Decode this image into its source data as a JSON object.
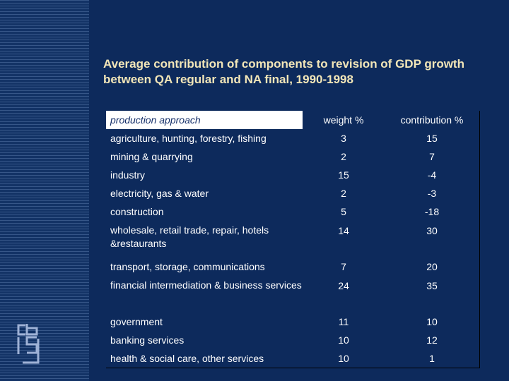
{
  "title": "Average contribution of components to revision of GDP growth between QA regular and NA final, 1990-1998",
  "table": {
    "header": {
      "label": "production approach",
      "weight": "weight %",
      "contribution": "contribution %"
    },
    "rows": [
      {
        "label": "agriculture, hunting, forestry, fishing",
        "weight": "3",
        "contribution": "15"
      },
      {
        "label": "mining & quarrying",
        "weight": "2",
        "contribution": "7"
      },
      {
        "label": "industry",
        "weight": "15",
        "contribution": "-4"
      },
      {
        "label": "electricity, gas & water",
        "weight": "2",
        "contribution": "-3"
      },
      {
        "label": "construction",
        "weight": "5",
        "contribution": "-18"
      },
      {
        "label": "wholesale, retail trade, repair, hotels &restaurants",
        "weight": "14",
        "contribution": "30"
      },
      {
        "label": "transport, storage, communications",
        "weight": "7",
        "contribution": "20"
      },
      {
        "label": "financial intermediation & business services",
        "weight": "24",
        "contribution": "35"
      },
      {
        "label": "government",
        "weight": "11",
        "contribution": "10"
      },
      {
        "label": "banking services",
        "weight": "10",
        "contribution": "12"
      },
      {
        "label": "health & social care, other services",
        "weight": "10",
        "contribution": "1"
      }
    ]
  },
  "logo": {
    "icon": "cbs-logo-icon"
  },
  "colors": {
    "background": "#0d2a5c",
    "title": "#f2e6b8",
    "header_label_bg": "#ffffff"
  }
}
